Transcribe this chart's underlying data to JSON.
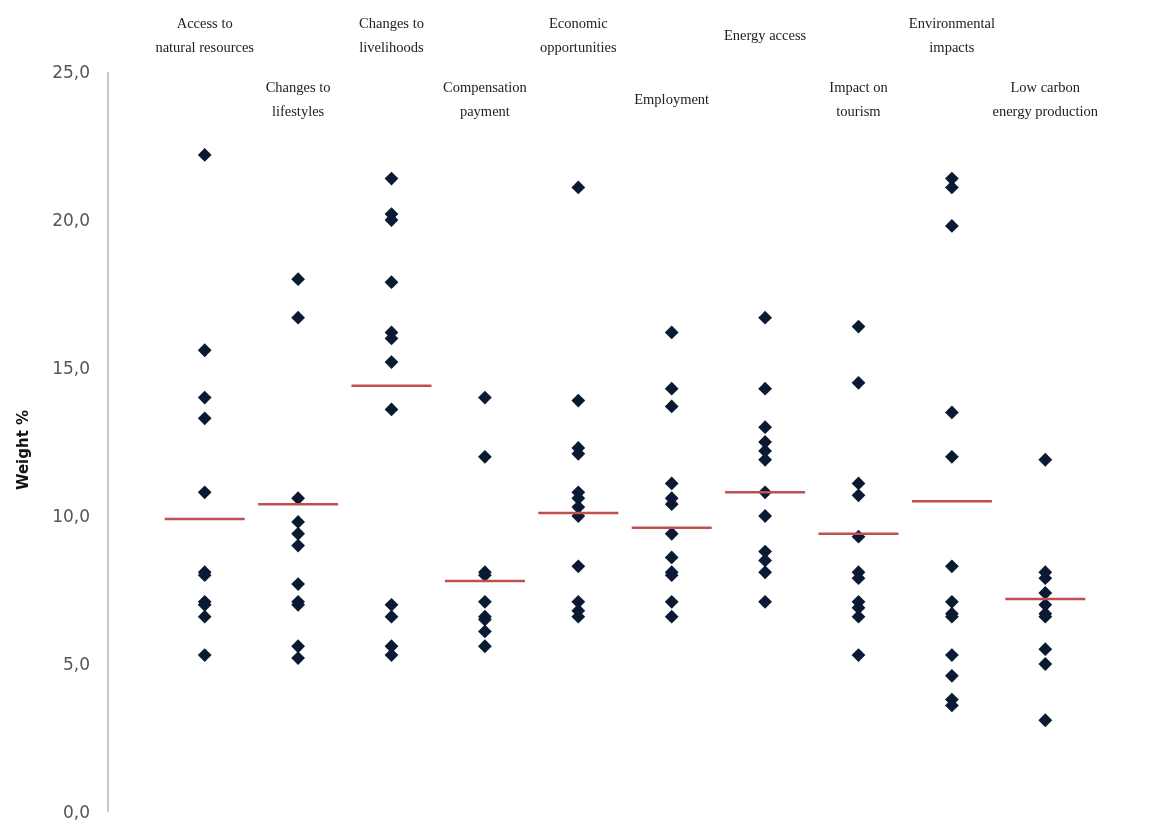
{
  "chart_data": {
    "type": "scatter",
    "ylabel": "Weight %",
    "categories": [
      "Access to natural resources",
      "Changes to lifestyles",
      "Changes to livelihoods",
      "Compensation payment",
      "Economic opportunities",
      "Employment",
      "Energy access",
      "Impact on tourism",
      "Environmental impacts",
      "Low carbon energy production"
    ],
    "ylim": [
      0,
      25
    ],
    "yticks": [
      {
        "value": 0,
        "label": "0,0"
      },
      {
        "value": 5,
        "label": "5,0"
      },
      {
        "value": 10,
        "label": "10,0"
      },
      {
        "value": 15,
        "label": "15,0"
      },
      {
        "value": 20,
        "label": "20,0"
      },
      {
        "value": 25,
        "label": "25,0"
      }
    ],
    "grid": false,
    "series": [
      {
        "marker": "diamond",
        "color": "#0b1a33",
        "x": [
          "Access to natural resources",
          "Access to natural resources",
          "Access to natural resources",
          "Access to natural resources",
          "Access to natural resources",
          "Access to natural resources",
          "Access to natural resources",
          "Access to natural resources",
          "Access to natural resources",
          "Access to natural resources",
          "Access to natural resources",
          "Changes to lifestyles",
          "Changes to lifestyles",
          "Changes to lifestyles",
          "Changes to lifestyles",
          "Changes to lifestyles",
          "Changes to lifestyles",
          "Changes to lifestyles",
          "Changes to lifestyles",
          "Changes to lifestyles",
          "Changes to lifestyles",
          "Changes to lifestyles",
          "Changes to livelihoods",
          "Changes to livelihoods",
          "Changes to livelihoods",
          "Changes to livelihoods",
          "Changes to livelihoods",
          "Changes to livelihoods",
          "Changes to livelihoods",
          "Changes to livelihoods",
          "Changes to livelihoods",
          "Changes to livelihoods",
          "Changes to livelihoods",
          "Changes to livelihoods",
          "Compensation payment",
          "Compensation payment",
          "Compensation payment",
          "Compensation payment",
          "Compensation payment",
          "Compensation payment",
          "Compensation payment",
          "Compensation payment",
          "Compensation payment",
          "Economic opportunities",
          "Economic opportunities",
          "Economic opportunities",
          "Economic opportunities",
          "Economic opportunities",
          "Economic opportunities",
          "Economic opportunities",
          "Economic opportunities",
          "Economic opportunities",
          "Economic opportunities",
          "Economic opportunities",
          "Economic opportunities",
          "Employment",
          "Employment",
          "Employment",
          "Employment",
          "Employment",
          "Employment",
          "Employment",
          "Employment",
          "Employment",
          "Employment",
          "Employment",
          "Employment",
          "Energy access",
          "Energy access",
          "Energy access",
          "Energy access",
          "Energy access",
          "Energy access",
          "Energy access",
          "Energy access",
          "Energy access",
          "Energy access",
          "Energy access",
          "Energy access",
          "Impact on tourism",
          "Impact on tourism",
          "Impact on tourism",
          "Impact on tourism",
          "Impact on tourism",
          "Impact on tourism",
          "Impact on tourism",
          "Impact on tourism",
          "Impact on tourism",
          "Impact on tourism",
          "Impact on tourism",
          "Environmental impacts",
          "Environmental impacts",
          "Environmental impacts",
          "Environmental impacts",
          "Environmental impacts",
          "Environmental impacts",
          "Environmental impacts",
          "Environmental impacts",
          "Environmental impacts",
          "Environmental impacts",
          "Environmental impacts",
          "Environmental impacts",
          "Environmental impacts",
          "Low carbon energy production",
          "Low carbon energy production",
          "Low carbon energy production",
          "Low carbon energy production",
          "Low carbon energy production",
          "Low carbon energy production",
          "Low carbon energy production",
          "Low carbon energy production",
          "Low carbon energy production",
          "Low carbon energy production"
        ],
        "values": [
          22.2,
          15.6,
          14.0,
          13.3,
          10.8,
          8.1,
          8.0,
          7.1,
          7.0,
          6.6,
          5.3,
          18.0,
          16.7,
          10.6,
          9.8,
          9.4,
          9.0,
          7.7,
          7.1,
          7.0,
          5.6,
          5.2,
          21.4,
          20.2,
          20.0,
          17.9,
          16.2,
          16.0,
          15.2,
          13.6,
          7.0,
          6.6,
          5.6,
          5.3,
          14.0,
          12.0,
          8.1,
          8.0,
          7.1,
          6.6,
          6.5,
          6.1,
          5.6,
          21.1,
          13.9,
          12.3,
          12.1,
          10.8,
          10.6,
          10.3,
          10.0,
          8.3,
          7.1,
          6.8,
          6.6,
          16.2,
          14.3,
          13.7,
          11.1,
          10.6,
          10.4,
          9.4,
          8.6,
          8.1,
          8.0,
          7.1,
          6.6,
          16.7,
          14.3,
          13.0,
          12.5,
          12.2,
          11.9,
          10.8,
          10.0,
          8.8,
          8.5,
          8.1,
          7.1,
          16.4,
          14.5,
          11.1,
          10.7,
          9.3,
          8.1,
          7.9,
          7.1,
          6.9,
          6.6,
          5.3,
          21.4,
          21.1,
          19.8,
          13.5,
          12.0,
          8.3,
          7.1,
          6.7,
          6.6,
          5.3,
          4.6,
          3.8,
          3.6,
          11.9,
          8.1,
          7.9,
          7.4,
          7.0,
          6.7,
          6.6,
          5.5,
          5.0,
          3.1
        ]
      },
      {
        "type": "box",
        "color": "#c0504d",
        "boxes": [
          {
            "low": 9.9,
            "q1": 9.9,
            "median": 9.9,
            "q3": 9.9,
            "high": 9.9
          },
          {
            "low": 10.4,
            "q1": 10.4,
            "median": 10.4,
            "q3": 10.4,
            "high": 10.4
          },
          {
            "low": 14.4,
            "q1": 14.4,
            "median": 14.4,
            "q3": 14.4,
            "high": 14.4
          },
          {
            "low": 7.8,
            "q1": 7.8,
            "median": 7.8,
            "q3": 7.8,
            "high": 7.8
          },
          {
            "low": 10.1,
            "q1": 10.1,
            "median": 10.1,
            "q3": 10.1,
            "high": 10.1
          },
          {
            "low": 9.6,
            "q1": 9.6,
            "median": 9.6,
            "q3": 9.6,
            "high": 9.6
          },
          {
            "low": 10.8,
            "q1": 10.8,
            "median": 10.8,
            "q3": 10.8,
            "high": 10.8
          },
          {
            "low": 9.4,
            "q1": 9.4,
            "median": 9.4,
            "q3": 9.4,
            "high": 9.4
          },
          {
            "low": 10.5,
            "q1": 10.5,
            "median": 10.5,
            "q3": 10.5,
            "high": 10.5
          },
          {
            "low": 7.2,
            "q1": 7.2,
            "median": 7.2,
            "q3": 7.2,
            "high": 7.2
          }
        ]
      }
    ]
  }
}
